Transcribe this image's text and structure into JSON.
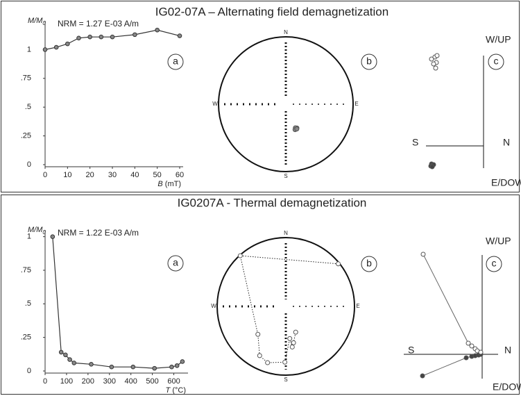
{
  "panels": [
    {
      "title": "IG02-07A – Alternating field demagnetization",
      "charts": [
        {
          "type": "line",
          "ylabel": "M/M",
          "ylabel_subscript": "0",
          "annotation": "NRM =  1.27 E-03 A/m",
          "xlabel_var": "B",
          "xlabel_unit": "(mT)",
          "letter": "a",
          "x": [
            0,
            5,
            10,
            15,
            20,
            25,
            30,
            40,
            50,
            60
          ],
          "values": [
            1,
            1.02,
            1.05,
            1.1,
            1.11,
            1.11,
            1.11,
            1.13,
            1.17,
            1.12
          ],
          "xlim": [
            0,
            60
          ],
          "xticks": [
            0,
            10,
            20,
            30,
            40,
            50,
            60
          ],
          "ylim": [
            0,
            1.25
          ],
          "yticks": [
            0,
            {
              "value": 0.25,
              "label": ".25"
            },
            {
              "value": 0.5,
              "label": ".5"
            },
            {
              "value": 0.75,
              "label": ".75"
            },
            1
          ],
          "color": "#888888"
        },
        {
          "type": "stereonet",
          "letter": "b",
          "directions": [
            "N",
            "E",
            "S",
            "W"
          ],
          "connect": false,
          "dec": [
            155,
            158,
            160,
            156
          ],
          "inc": [
            58,
            59,
            57,
            57
          ],
          "color": "#888888"
        },
        {
          "type": "zijderveld",
          "letter": "c",
          "up_label": "W/UP",
          "down_label": "E/DOWN",
          "left_label": "S",
          "right_label": "N",
          "connect": false,
          "horizontal": {
            "north": [
              -7.5,
              -7.3,
              -7.6,
              -7.2,
              -7.4
            ],
            "east": [
              2.6,
              2.8,
              2.9,
              2.7,
              3.0
            ]
          },
          "vertical": {
            "north": [
              -7.5,
              -7.0,
              -6.8,
              -7.2,
              -6.9,
              -6.7
            ],
            "up": [
              12.5,
              12.8,
              12.0,
              11.8,
              11.2,
              13.0
            ]
          }
        }
      ]
    },
    {
      "title": "IG0207A - Thermal demagnetization",
      "charts": [
        {
          "type": "line",
          "ylabel": "M/M",
          "ylabel_subscript": "0",
          "annotation": "NRM =  1.22 E-03 A/m",
          "xlabel_var": "T",
          "xlabel_unit": "(°C)",
          "letter": "a",
          "x": [
            35,
            75,
            95,
            115,
            135,
            215,
            310,
            410,
            510,
            590,
            615,
            640
          ],
          "values": [
            1,
            0.14,
            0.12,
            0.085,
            0.06,
            0.05,
            0.03,
            0.03,
            0.02,
            0.03,
            0.04,
            0.07
          ],
          "xlim": [
            0,
            650
          ],
          "xticks": [
            0,
            100,
            200,
            300,
            400,
            500,
            600
          ],
          "ylim": [
            0,
            1.05
          ],
          "yticks": [
            0,
            {
              "value": 0.25,
              "label": ".25"
            },
            {
              "value": 0.5,
              "label": ".5"
            },
            {
              "value": 0.75,
              "label": ".75"
            },
            1
          ],
          "color": "#888888"
        },
        {
          "type": "stereonet",
          "letter": "b",
          "directions": [
            "N",
            "E",
            "S",
            "W"
          ],
          "connect": true,
          "dec": [
            51,
            318,
            225,
            208,
            198,
            181,
            173,
            171,
            168,
            159
          ],
          "inc": [
            -2,
            -1,
            -42,
            -20,
            -15,
            -20,
            -51,
            -40,
            -45,
            -57
          ],
          "color": "#888888"
        },
        {
          "type": "zijderveld",
          "letter": "c",
          "up_label": "W/UP",
          "down_label": "E/DOWN",
          "left_label": "S",
          "right_label": "N",
          "connect": true,
          "horizontal": {
            "north": [
              -8.6,
              -2.3,
              -1.5,
              -1.0,
              -0.5,
              -0.2
            ],
            "east": [
              3.1,
              0.5,
              0.3,
              0.2,
              0.1,
              0
            ]
          },
          "vertical": {
            "north": [
              -8.5,
              -2.0,
              -1.5,
              -1.0,
              -0.7,
              -0.2
            ],
            "up": [
              14.4,
              1.6,
              1.2,
              0.8,
              0.5,
              0.3
            ]
          }
        }
      ]
    }
  ]
}
